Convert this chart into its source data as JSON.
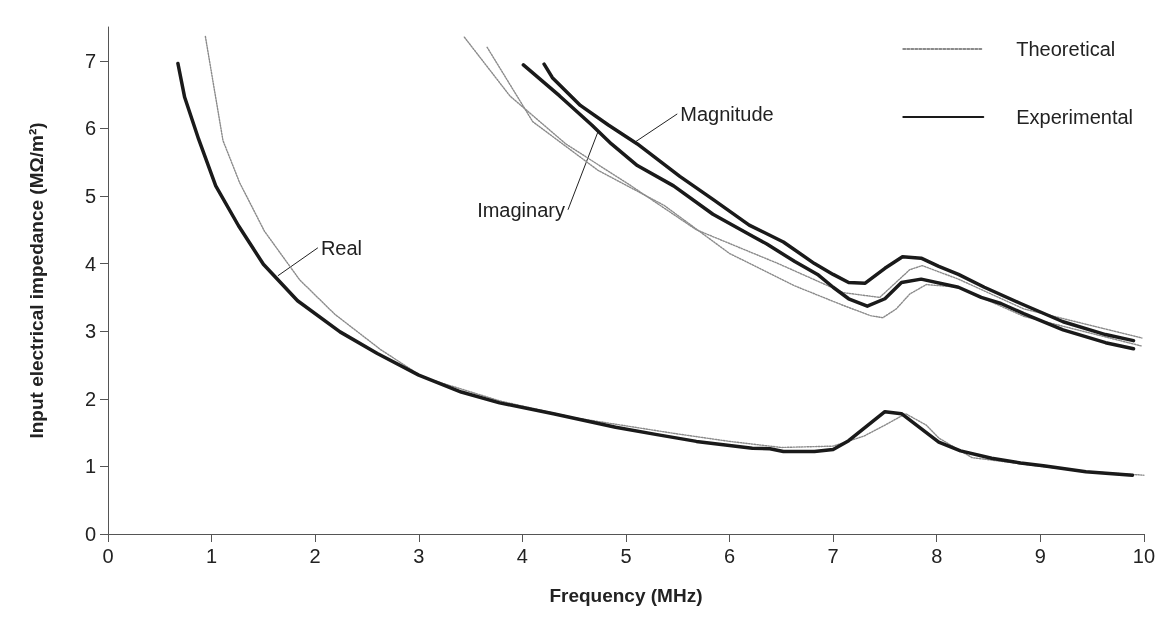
{
  "chart_data": {
    "type": "line",
    "xlabel": "Frequency (MHz)",
    "ylabel": "Input electrical impedance (MΩ/m²)",
    "xlim": [
      0,
      10
    ],
    "xticks": [
      0,
      1,
      2,
      3,
      4,
      5,
      6,
      7,
      8,
      9,
      10
    ],
    "ylim": [
      0,
      7.5
    ],
    "yticks": [
      0,
      1,
      2,
      3,
      4,
      5,
      6,
      7
    ],
    "grid": false,
    "legend": "top right",
    "marker": "none",
    "series": [
      {
        "name": "Theoretical",
        "color": "#8a8a8a",
        "line_style": "dotted",
        "x": [
          0.94,
          1.11,
          1.27,
          1.51,
          1.85,
          2.19,
          2.63,
          3.04,
          3.78,
          4.5,
          5.0,
          5.5,
          6.0,
          6.5,
          7.0,
          7.3,
          7.5,
          7.7,
          7.9,
          8.02,
          8.34,
          8.6,
          9.0,
          9.5,
          10.0
        ],
        "values": [
          7.36,
          5.82,
          5.2,
          4.48,
          3.76,
          3.25,
          2.73,
          2.32,
          1.97,
          1.72,
          1.6,
          1.48,
          1.37,
          1.28,
          1.3,
          1.45,
          1.61,
          1.78,
          1.61,
          1.42,
          1.13,
          1.08,
          1.0,
          0.92,
          0.87
        ]
      },
      {
        "color": "#8a8a8a",
        "line_style": "dotted",
        "x": [
          3.66,
          4.1,
          4.73,
          5.37,
          6.0,
          6.63,
          7.1,
          7.36,
          7.48,
          7.61,
          7.74,
          7.9,
          8.21,
          8.84,
          9.98
        ],
        "values": [
          7.2,
          6.1,
          5.38,
          4.86,
          4.15,
          3.67,
          3.38,
          3.23,
          3.2,
          3.33,
          3.55,
          3.69,
          3.65,
          3.22,
          2.78
        ]
      },
      {
        "color": "#8a8a8a",
        "line_style": "dotted",
        "x": [
          3.44,
          3.88,
          4.42,
          5.05,
          5.68,
          6.47,
          7.1,
          7.45,
          7.74,
          7.86,
          8.21,
          8.84,
          9.98
        ],
        "values": [
          7.35,
          6.48,
          5.77,
          5.15,
          4.5,
          4.0,
          3.57,
          3.5,
          3.91,
          3.97,
          3.77,
          3.33,
          2.9
        ]
      },
      {
        "name": "Experimental",
        "color": "#1a1a1a",
        "line_style": "solid",
        "x": [
          0.675,
          0.74,
          0.875,
          1.04,
          1.26,
          1.5,
          1.83,
          2.24,
          2.6,
          3.0,
          3.41,
          3.78,
          4.3,
          4.9,
          5.3,
          5.68,
          6.22,
          6.39,
          6.52,
          6.82,
          7.0,
          7.15,
          7.5,
          7.66,
          8.02,
          8.23,
          8.53,
          8.81,
          9.03,
          9.44,
          9.89
        ],
        "values": [
          6.96,
          6.46,
          5.84,
          5.15,
          4.56,
          3.99,
          3.45,
          2.99,
          2.67,
          2.35,
          2.1,
          1.94,
          1.78,
          1.58,
          1.47,
          1.37,
          1.27,
          1.26,
          1.22,
          1.22,
          1.25,
          1.38,
          1.81,
          1.78,
          1.36,
          1.23,
          1.12,
          1.05,
          1.01,
          0.92,
          0.87
        ]
      },
      {
        "color": "#1a1a1a",
        "line_style": "solid",
        "x": [
          4.01,
          4.36,
          4.67,
          4.86,
          5.11,
          5.46,
          5.84,
          6.24,
          6.36,
          6.63,
          6.85,
          7.0,
          7.15,
          7.33,
          7.5,
          7.66,
          7.85,
          8.21,
          8.43,
          8.62,
          8.84,
          9.22,
          9.63,
          9.9
        ],
        "values": [
          6.94,
          6.48,
          6.05,
          5.77,
          5.45,
          5.15,
          4.73,
          4.39,
          4.29,
          4.03,
          3.84,
          3.65,
          3.48,
          3.37,
          3.48,
          3.72,
          3.77,
          3.65,
          3.5,
          3.41,
          3.26,
          3.02,
          2.83,
          2.74
        ]
      },
      {
        "color": "#1a1a1a",
        "line_style": "solid",
        "x": [
          4.21,
          4.29,
          4.56,
          4.83,
          5.11,
          5.52,
          5.84,
          6.19,
          6.52,
          6.82,
          7.0,
          7.15,
          7.31,
          7.5,
          7.67,
          7.85,
          8.02,
          8.21,
          8.46,
          8.81,
          9.22,
          9.63,
          9.9
        ],
        "values": [
          6.95,
          6.75,
          6.34,
          6.05,
          5.77,
          5.29,
          4.95,
          4.57,
          4.32,
          4.0,
          3.84,
          3.72,
          3.71,
          3.93,
          4.1,
          4.08,
          3.96,
          3.84,
          3.65,
          3.41,
          3.14,
          2.95,
          2.86
        ]
      }
    ],
    "annotations": [
      {
        "text": "Real",
        "x": 1.64,
        "y": 3.82
      },
      {
        "text": "Imaginary",
        "x": 4.73,
        "y": 5.95
      },
      {
        "text": "Magnitude",
        "x": 5.09,
        "y": 5.8
      }
    ]
  }
}
